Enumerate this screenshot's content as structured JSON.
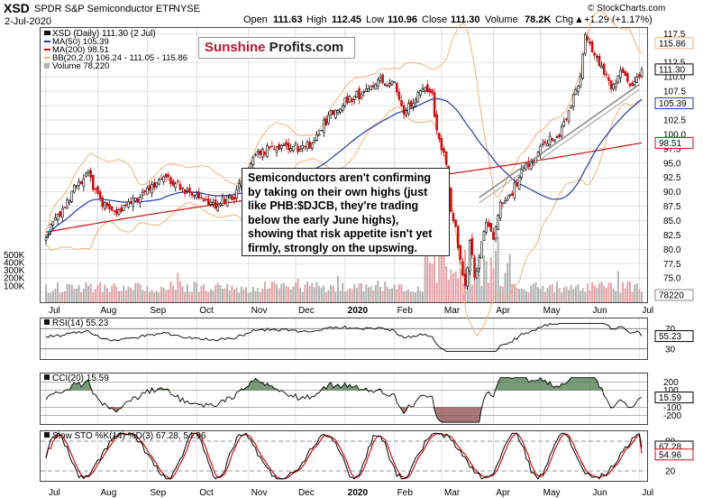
{
  "header": {
    "symbol": "XSD",
    "name": "SPDR S&P Semiconductor ETF",
    "exchange": "NYSE",
    "date": "2-Jul-2020",
    "open_label": "Open",
    "open": "111.63",
    "high_label": "High",
    "high": "112.45",
    "low_label": "Low",
    "low": "110.96",
    "close_label": "Close",
    "close": "111.30",
    "volume_label": "Volume",
    "volume": "78.2K",
    "chg_label": "Chg",
    "chg": "+1.29 (+1.17%)",
    "chg_arrow": "▲",
    "watermark": "© StockCharts.com"
  },
  "legend": {
    "main": "XSD (Daily) 111.30 (2 Jul)",
    "ma50": "MA(50) 105.39",
    "ma200": "MA(200) 98.51",
    "bb": "BB(20,2.0) 106.24 - 111.05 - 115.86",
    "volume": "Volume 78,220"
  },
  "logo": {
    "part1": "Sunshine",
    "part2": " Profits.com"
  },
  "annotation": "Semiconductors aren't confirming by taking on their own highs (just like PHB:$DJCB, they're trading below the early June highs), showing that risk appetite isn't yet firmly, strongly on the upswing.",
  "colors": {
    "up": "#000000",
    "down": "#cc1111",
    "ma50": "#1f3aa8",
    "ma200": "#cc1111",
    "bb": "#f5b27a",
    "vol_up": "#b3b3b3",
    "vol_down": "#e8a3a8",
    "rsi": "#000000",
    "cci_fill_pos": "#4a7a4a",
    "cci_fill_neg": "#8a4a4a",
    "sto_k": "#000000",
    "sto_d": "#cc1111"
  },
  "chart_data": {
    "type": "candlestick",
    "x_labels": [
      "Jul",
      "Aug",
      "Sep",
      "Oct",
      "Nov",
      "Dec",
      "2020",
      "Feb",
      "Mar",
      "Apr",
      "May",
      "Jun",
      "Jul"
    ],
    "price": {
      "y_ticks": [
        "72.5",
        "75.0",
        "77.5",
        "80.0",
        "82.5",
        "85.0",
        "87.5",
        "90.0",
        "92.5",
        "95.0",
        "97.5",
        "100.0",
        "102.5",
        "105.0",
        "107.5",
        "110.0",
        "112.5",
        "117.5"
      ],
      "ylim": [
        70.8,
        118.5
      ],
      "close_anchors": [
        [
          0,
          82.5
        ],
        [
          6,
          86.5
        ],
        [
          12,
          90.5
        ],
        [
          18,
          93
        ],
        [
          22,
          89
        ],
        [
          28,
          86
        ],
        [
          36,
          88
        ],
        [
          44,
          90.5
        ],
        [
          52,
          92.5
        ],
        [
          60,
          90
        ],
        [
          66,
          88.5
        ],
        [
          72,
          87.8
        ],
        [
          80,
          89
        ],
        [
          88,
          96
        ],
        [
          96,
          98
        ],
        [
          104,
          97.5
        ],
        [
          112,
          98
        ],
        [
          120,
          103
        ],
        [
          128,
          106
        ],
        [
          136,
          107.5
        ],
        [
          142,
          109.5
        ],
        [
          148,
          108.5
        ],
        [
          152,
          104.2
        ],
        [
          156,
          106
        ],
        [
          160,
          108.5
        ],
        [
          164,
          107
        ],
        [
          166,
          100
        ],
        [
          170,
          95
        ],
        [
          172,
          86
        ],
        [
          174,
          84
        ],
        [
          176,
          78
        ],
        [
          178,
          73
        ],
        [
          180,
          82
        ],
        [
          182,
          75
        ],
        [
          184,
          79
        ],
        [
          187,
          85
        ],
        [
          190,
          81
        ],
        [
          193,
          88
        ],
        [
          198,
          90
        ],
        [
          203,
          94
        ],
        [
          208,
          96
        ],
        [
          212,
          98.5
        ],
        [
          218,
          100
        ],
        [
          223,
          105
        ],
        [
          227,
          110.5
        ],
        [
          229,
          117
        ],
        [
          232,
          114
        ],
        [
          236,
          112
        ],
        [
          240,
          108
        ],
        [
          244,
          110.5
        ],
        [
          249,
          108.7
        ],
        [
          252,
          110.5
        ],
        [
          253,
          111.3
        ]
      ],
      "labels": {
        "bb_upper": "115.86",
        "last": "111.30",
        "ma50": "105.39",
        "ma200": "98.51"
      }
    },
    "volume": {
      "y_ticks": [
        "100K",
        "200K",
        "300K",
        "400K",
        "500K"
      ],
      "ylim": [
        0,
        600000
      ],
      "last": "78220"
    },
    "rsi": {
      "label": "RSI(14) 55.23",
      "y_ticks": [
        "70",
        "30"
      ],
      "ylim": [
        10,
        90
      ],
      "last": "55.23"
    },
    "cci": {
      "label": "CCI(20) 15.59",
      "y_ticks": [
        "200",
        "100",
        "-100",
        "-200"
      ],
      "ylim": [
        -300,
        300
      ],
      "last": "15.59"
    },
    "stoch": {
      "label": "Slow STO %K(14) %D(3) 67.28, 54.96",
      "y_ticks": [
        "80",
        "20"
      ],
      "ylim": [
        0,
        100
      ],
      "last_k": "67.28",
      "last_d": "54.96"
    }
  }
}
